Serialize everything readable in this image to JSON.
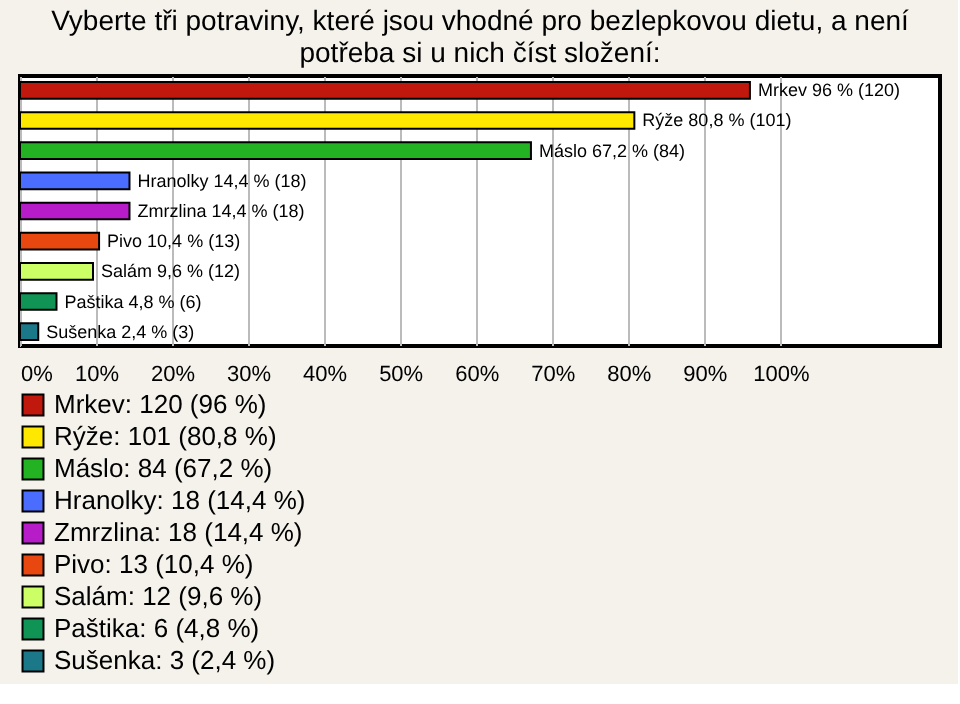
{
  "chart_data": {
    "type": "bar",
    "orientation": "horizontal",
    "title": [
      "Vyberte tři potraviny, které jsou vhodné pro bezlepkovou dietu, a není",
      "potřeba si u nich číst složení:"
    ],
    "categories": [
      null,
      null,
      null,
      null,
      null,
      null,
      null,
      null,
      null
    ],
    "series": [
      {
        "name": "Mrkev: 120 (96 %)",
        "color": "#c0180c",
        "values": [
          96,
          null,
          null,
          null,
          null,
          null,
          null,
          null,
          null
        ],
        "value_labels": [
          "Mrkev 96 % (120)",
          null,
          null,
          null,
          null,
          null,
          null,
          null,
          null
        ]
      },
      {
        "name": "Rýže: 101 (80,8 %)",
        "color": "#ffe800",
        "values": [
          null,
          80.8,
          null,
          null,
          null,
          null,
          null,
          null,
          null
        ],
        "value_labels": [
          null,
          "Rýže 80,8 % (101)",
          null,
          null,
          null,
          null,
          null,
          null,
          null
        ]
      },
      {
        "name": "Máslo: 84 (67,2 %)",
        "color": "#22b222",
        "values": [
          null,
          null,
          67.2,
          null,
          null,
          null,
          null,
          null,
          null
        ],
        "value_labels": [
          null,
          null,
          "Máslo 67,2 % (84)",
          null,
          null,
          null,
          null,
          null,
          null
        ]
      },
      {
        "name": "Hranolky: 18 (14,4 %)",
        "color": "#4a6cff",
        "values": [
          null,
          null,
          null,
          14.4,
          null,
          null,
          null,
          null,
          null
        ],
        "value_labels": [
          null,
          null,
          null,
          "Hranolky 14,4 % (18)",
          null,
          null,
          null,
          null,
          null
        ]
      },
      {
        "name": "Zmrzlina: 18 (14,4 %)",
        "color": "#b61cc8",
        "values": [
          null,
          null,
          null,
          null,
          14.4,
          null,
          null,
          null,
          null
        ],
        "value_labels": [
          null,
          null,
          null,
          null,
          "Zmrzlina 14,4 % (18)",
          null,
          null,
          null,
          null
        ]
      },
      {
        "name": "Pivo: 13 (10,4 %)",
        "color": "#e84810",
        "values": [
          null,
          null,
          null,
          null,
          null,
          10.4,
          null,
          null,
          null
        ],
        "value_labels": [
          null,
          null,
          null,
          null,
          null,
          "Pivo 10,4 % (13)",
          null,
          null,
          null
        ]
      },
      {
        "name": "Salám: 12 (9,6 %)",
        "color": "#ccff66",
        "values": [
          null,
          null,
          null,
          null,
          null,
          null,
          9.6,
          null,
          null
        ],
        "value_labels": [
          null,
          null,
          null,
          null,
          null,
          null,
          "Salám 9,6 % (12)",
          null,
          null
        ]
      },
      {
        "name": "Paštika: 6 (4,8 %)",
        "color": "#109455",
        "values": [
          null,
          null,
          null,
          null,
          null,
          null,
          null,
          4.8,
          null
        ],
        "value_labels": [
          null,
          null,
          null,
          null,
          null,
          null,
          null,
          "Paštika 4,8 % (6)",
          null
        ]
      },
      {
        "name": "Sušenka: 3 (2,4 %)",
        "color": "#1a7888",
        "values": [
          null,
          null,
          null,
          null,
          null,
          null,
          null,
          null,
          2.4
        ],
        "value_labels": [
          null,
          null,
          null,
          null,
          null,
          null,
          null,
          null,
          "Sušenka 2,4 % (3)"
        ]
      }
    ],
    "xlim": [
      0,
      121
    ],
    "xticks": [
      {
        "value": 0,
        "label": "0%"
      },
      {
        "value": 10,
        "label": "10%"
      },
      {
        "value": 20,
        "label": "20%"
      },
      {
        "value": 30,
        "label": "30%"
      },
      {
        "value": 40,
        "label": "40%"
      },
      {
        "value": 50,
        "label": "50%"
      },
      {
        "value": 60,
        "label": "60%"
      },
      {
        "value": 70,
        "label": "70%"
      },
      {
        "value": 80,
        "label": "80%"
      },
      {
        "value": 90,
        "label": "90%"
      },
      {
        "value": 100,
        "label": "100%"
      }
    ],
    "grid": "x",
    "legend": "bottom left",
    "tick_labels": "x"
  }
}
